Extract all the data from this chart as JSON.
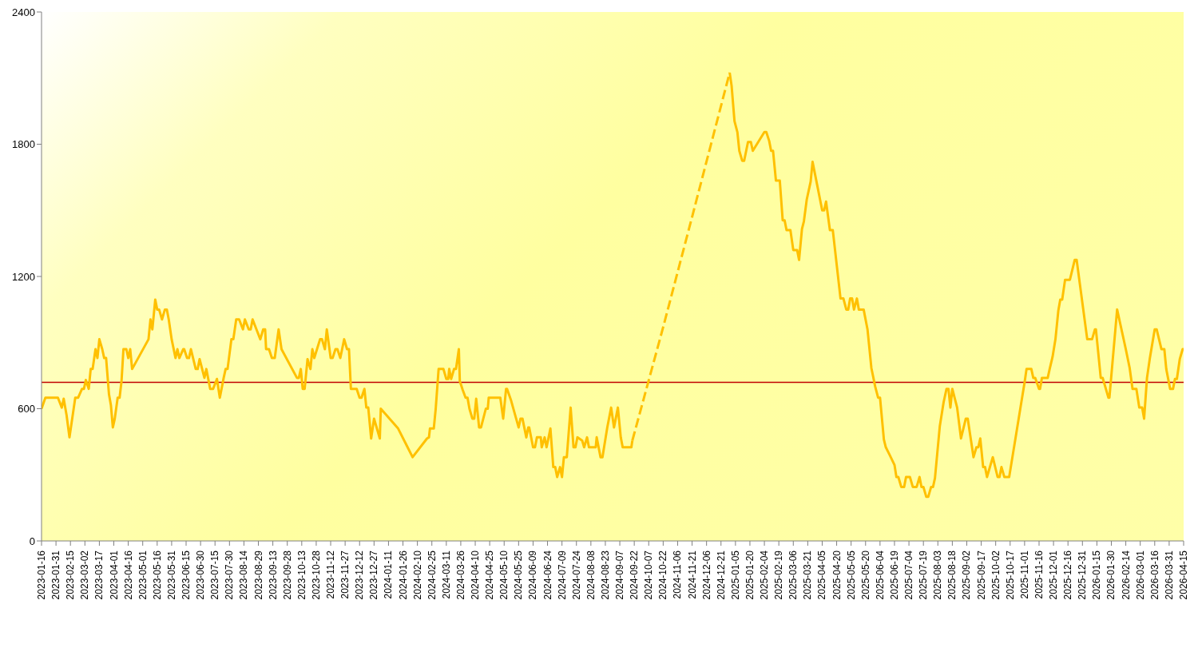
{
  "chart_data": {
    "type": "line",
    "line_style": "solid",
    "marker": "none",
    "xlim": [
      "2023-01-16",
      "2026-04-15"
    ],
    "xticks": [
      "2023-01-16",
      "2023-01-31",
      "2023-02-15",
      "2023-03-02",
      "2023-03-17",
      "2023-04-01",
      "2023-04-16",
      "2023-05-01",
      "2023-05-16",
      "2023-05-31",
      "2023-06-15",
      "2023-06-30",
      "2023-07-15",
      "2023-07-30",
      "2023-08-14",
      "2023-08-29",
      "2023-09-13",
      "2023-09-28",
      "2023-10-13",
      "2023-10-28",
      "2023-11-12",
      "2023-11-27",
      "2023-12-12",
      "2023-12-27",
      "2024-01-11",
      "2024-01-26",
      "2024-02-10",
      "2024-02-25",
      "2024-03-11",
      "2024-03-26",
      "2024-04-10",
      "2024-04-25",
      "2024-05-10",
      "2024-05-25",
      "2024-06-09",
      "2024-06-24",
      "2024-07-09",
      "2024-07-24",
      "2024-08-08",
      "2024-08-23",
      "2024-09-07",
      "2024-09-22",
      "2024-10-07",
      "2024-10-22",
      "2024-11-06",
      "2024-11-21",
      "2024-12-06",
      "2024-12-21",
      "2025-01-05",
      "2025-01-20",
      "2025-02-04",
      "2025-02-19",
      "2025-03-06",
      "2025-03-21",
      "2025-04-05",
      "2025-04-20",
      "2025-05-05",
      "2025-05-20",
      "2025-06-04",
      "2025-06-19",
      "2025-07-04",
      "2025-07-19",
      "2025-08-03",
      "2025-08-18",
      "2025-09-02",
      "2025-09-17",
      "2025-10-02",
      "2025-10-17",
      "2025-11-01",
      "2025-11-16",
      "2025-12-01",
      "2025-12-16",
      "2025-12-31",
      "2026-01-15",
      "2026-01-30",
      "2026-02-14",
      "2026-03-01",
      "2026-03-16",
      "2026-03-31",
      "2026-04-15"
    ],
    "ylim": [
      0,
      2400
    ],
    "yticks": [
      0,
      600,
      1200,
      1800,
      2400
    ],
    "ref_lines": [
      {
        "axis": "y",
        "value": 720,
        "color": "#c00000"
      }
    ],
    "series": [
      {
        "color": "#ffc000",
        "x": [
          "2023-01-16",
          "2023-01-20",
          "2023-02-02",
          "2023-02-06",
          "2023-02-08",
          "2023-02-11",
          "2023-02-14",
          "2023-02-20",
          "2023-02-23",
          "2023-02-27",
          "2023-03-01",
          "2023-03-03",
          "2023-03-06",
          "2023-03-08",
          "2023-03-10",
          "2023-03-13",
          "2023-03-15",
          "2023-03-17",
          "2023-03-20",
          "2023-03-22",
          "2023-03-24",
          "2023-03-27",
          "2023-03-29",
          "2023-03-31",
          "2023-04-02",
          "2023-04-05",
          "2023-04-07",
          "2023-04-09",
          "2023-04-11",
          "2023-04-14",
          "2023-04-16",
          "2023-04-18",
          "2023-04-20",
          "2023-05-07",
          "2023-05-09",
          "2023-05-11",
          "2023-05-14",
          "2023-05-16",
          "2023-05-18",
          "2023-05-21",
          "2023-05-24",
          "2023-05-26",
          "2023-05-28",
          "2023-05-31",
          "2023-06-04",
          "2023-06-06",
          "2023-06-08",
          "2023-06-12",
          "2023-06-13",
          "2023-06-16",
          "2023-06-18",
          "2023-06-20",
          "2023-06-25",
          "2023-06-27",
          "2023-06-29",
          "2023-07-04",
          "2023-07-06",
          "2023-07-10",
          "2023-07-13",
          "2023-07-17",
          "2023-07-20",
          "2023-07-24",
          "2023-07-26",
          "2023-07-28",
          "2023-08-01",
          "2023-08-03",
          "2023-08-06",
          "2023-08-09",
          "2023-08-13",
          "2023-08-15",
          "2023-08-19",
          "2023-08-21",
          "2023-08-23",
          "2023-08-27",
          "2023-08-31",
          "2023-09-03",
          "2023-09-05",
          "2023-09-06",
          "2023-09-09",
          "2023-09-12",
          "2023-09-15",
          "2023-09-19",
          "2023-09-22",
          "2023-10-08",
          "2023-10-10",
          "2023-10-12",
          "2023-10-14",
          "2023-10-16",
          "2023-10-19",
          "2023-10-22",
          "2023-10-24",
          "2023-10-26",
          "2023-11-01",
          "2023-11-03",
          "2023-11-06",
          "2023-11-08",
          "2023-11-12",
          "2023-11-14",
          "2023-11-17",
          "2023-11-19",
          "2023-11-22",
          "2023-11-26",
          "2023-11-29",
          "2023-12-01",
          "2023-12-03",
          "2023-12-09",
          "2023-12-12",
          "2023-12-14",
          "2023-12-17",
          "2023-12-19",
          "2023-12-21",
          "2023-12-24",
          "2023-12-27",
          "2024-01-02",
          "2024-01-03",
          "2024-01-21",
          "2024-02-05",
          "2024-02-20",
          "2024-02-22",
          "2024-02-23",
          "2024-02-27",
          "2024-02-29",
          "2024-03-03",
          "2024-03-08",
          "2024-03-11",
          "2024-03-13",
          "2024-03-14",
          "2024-03-16",
          "2024-03-19",
          "2024-03-21",
          "2024-03-24",
          "2024-03-25",
          "2024-03-28",
          "2024-03-31",
          "2024-04-02",
          "2024-04-04",
          "2024-04-07",
          "2024-04-09",
          "2024-04-11",
          "2024-04-14",
          "2024-04-16",
          "2024-04-21",
          "2024-04-23",
          "2024-04-24",
          "2024-05-06",
          "2024-05-09",
          "2024-05-12",
          "2024-05-13",
          "2024-05-17",
          "2024-05-25",
          "2024-05-27",
          "2024-05-29",
          "2024-06-02",
          "2024-06-04",
          "2024-06-05",
          "2024-06-09",
          "2024-06-11",
          "2024-06-13",
          "2024-06-17",
          "2024-06-18",
          "2024-06-21",
          "2024-06-23",
          "2024-06-27",
          "2024-06-30",
          "2024-07-02",
          "2024-07-04",
          "2024-07-07",
          "2024-07-09",
          "2024-07-11",
          "2024-07-14",
          "2024-07-18",
          "2024-07-21",
          "2024-07-23",
          "2024-07-25",
          "2024-07-30",
          "2024-08-01",
          "2024-08-04",
          "2024-08-06",
          "2024-08-13",
          "2024-08-14",
          "2024-08-18",
          "2024-08-20",
          "2024-08-25",
          "2024-08-29",
          "2024-09-01",
          "2024-09-05",
          "2024-09-08",
          "2024-09-10",
          "2024-09-19",
          "2024-09-20"
        ],
        "values": [
          600,
          650,
          650,
          605,
          645,
          570,
          470,
          650,
          650,
          690,
          690,
          730,
          690,
          780,
          780,
          870,
          830,
          915,
          870,
          830,
          830,
          665,
          615,
          515,
          555,
          650,
          650,
          725,
          870,
          870,
          830,
          870,
          780,
          915,
          1005,
          960,
          1095,
          1050,
          1050,
          1005,
          1050,
          1050,
          1005,
          915,
          830,
          870,
          830,
          870,
          870,
          830,
          830,
          870,
          780,
          780,
          825,
          740,
          780,
          690,
          690,
          735,
          650,
          740,
          780,
          780,
          915,
          915,
          1005,
          1005,
          960,
          1005,
          960,
          960,
          1005,
          960,
          915,
          960,
          960,
          870,
          870,
          830,
          830,
          960,
          870,
          740,
          740,
          780,
          690,
          690,
          825,
          780,
          870,
          830,
          915,
          915,
          870,
          960,
          830,
          830,
          870,
          870,
          830,
          915,
          870,
          870,
          690,
          690,
          650,
          650,
          690,
          605,
          605,
          465,
          555,
          465,
          600,
          510,
          380,
          465,
          470,
          510,
          510,
          600,
          780,
          780,
          735,
          735,
          780,
          735,
          780,
          780,
          870,
          725,
          685,
          650,
          650,
          600,
          555,
          555,
          645,
          515,
          515,
          600,
          600,
          650,
          650,
          555,
          690,
          690,
          640,
          515,
          555,
          555,
          470,
          515,
          515,
          425,
          425,
          470,
          470,
          425,
          470,
          425,
          510,
          335,
          335,
          290,
          335,
          290,
          380,
          380,
          605,
          425,
          425,
          470,
          455,
          425,
          470,
          425,
          425,
          470,
          380,
          380,
          515,
          605,
          515,
          605,
          470,
          425,
          425,
          455
        ]
      },
      {
        "color": "#ffc000",
        "line_style": "dashed",
        "x": [
          "2024-09-20",
          "2024-10-22",
          "2024-11-21",
          "2024-12-30"
        ],
        "values": [
          455,
          970,
          1470,
          2125
        ]
      },
      {
        "color": "#ffc000",
        "x": [
          "2024-12-30",
          "2025-01-01",
          "2025-01-04",
          "2025-01-07",
          "2025-01-09",
          "2025-01-12",
          "2025-01-14",
          "2025-01-18",
          "2025-01-21",
          "2025-01-23",
          "2025-02-04",
          "2025-02-06",
          "2025-02-09",
          "2025-02-11",
          "2025-02-13",
          "2025-02-16",
          "2025-02-20",
          "2025-02-23",
          "2025-02-25",
          "2025-02-27",
          "2025-03-03",
          "2025-03-06",
          "2025-03-10",
          "2025-03-12",
          "2025-03-15",
          "2025-03-17",
          "2025-03-20",
          "2025-03-24",
          "2025-03-26",
          "2025-03-31",
          "2025-04-05",
          "2025-04-07",
          "2025-04-09",
          "2025-04-13",
          "2025-04-16",
          "2025-04-24",
          "2025-04-27",
          "2025-04-30",
          "2025-05-02",
          "2025-05-04",
          "2025-05-06",
          "2025-05-08",
          "2025-05-11",
          "2025-05-13",
          "2025-05-18",
          "2025-05-22",
          "2025-05-26",
          "2025-05-30",
          "2025-06-02",
          "2025-06-04",
          "2025-06-08",
          "2025-06-10",
          "2025-06-14",
          "2025-06-19",
          "2025-06-21",
          "2025-06-23",
          "2025-06-26",
          "2025-06-29",
          "2025-07-01",
          "2025-07-05",
          "2025-07-08",
          "2025-07-12",
          "2025-07-15",
          "2025-07-17",
          "2025-07-19",
          "2025-07-22",
          "2025-07-24",
          "2025-07-27",
          "2025-07-29",
          "2025-07-31",
          "2025-08-05",
          "2025-08-09",
          "2025-08-12",
          "2025-08-14",
          "2025-08-16",
          "2025-08-18",
          "2025-08-23",
          "2025-08-27",
          "2025-09-01",
          "2025-09-03",
          "2025-09-09",
          "2025-09-12",
          "2025-09-14",
          "2025-09-16",
          "2025-09-19",
          "2025-09-21",
          "2025-09-23",
          "2025-09-29",
          "2025-10-04",
          "2025-10-06",
          "2025-10-08",
          "2025-10-11",
          "2025-10-16",
          "2025-11-01",
          "2025-11-03",
          "2025-11-08",
          "2025-11-10",
          "2025-11-12",
          "2025-11-16",
          "2025-11-17",
          "2025-11-19",
          "2025-11-25",
          "2025-11-27",
          "2025-11-30",
          "2025-12-03",
          "2025-12-06",
          "2025-12-08",
          "2025-12-10",
          "2025-12-13",
          "2025-12-18",
          "2025-12-23",
          "2025-12-25",
          "2026-01-05",
          "2026-01-10",
          "2026-01-13",
          "2026-01-14",
          "2026-01-19",
          "2026-01-21",
          "2026-01-27",
          "2026-01-28",
          "2026-02-05",
          "2026-02-14",
          "2026-02-18",
          "2026-02-21",
          "2026-02-25",
          "2026-02-28",
          "2026-03-03",
          "2026-03-05",
          "2026-03-08",
          "2026-03-11",
          "2026-03-16",
          "2026-03-18",
          "2026-03-23",
          "2026-03-26",
          "2026-03-28",
          "2026-04-01",
          "2026-04-04",
          "2026-04-06",
          "2026-04-08",
          "2026-04-11",
          "2026-04-14",
          "2026-04-15"
        ],
        "values": [
          2125,
          2065,
          1905,
          1855,
          1770,
          1725,
          1725,
          1810,
          1810,
          1770,
          1855,
          1855,
          1815,
          1770,
          1770,
          1635,
          1635,
          1455,
          1455,
          1410,
          1410,
          1320,
          1320,
          1275,
          1415,
          1450,
          1550,
          1630,
          1720,
          1610,
          1500,
          1500,
          1540,
          1410,
          1410,
          1100,
          1100,
          1050,
          1050,
          1100,
          1100,
          1050,
          1100,
          1050,
          1050,
          960,
          785,
          700,
          650,
          650,
          460,
          425,
          390,
          345,
          290,
          290,
          245,
          245,
          290,
          290,
          245,
          245,
          290,
          245,
          245,
          200,
          200,
          245,
          245,
          285,
          520,
          630,
          690,
          690,
          605,
          690,
          605,
          465,
          555,
          555,
          380,
          425,
          425,
          465,
          335,
          335,
          290,
          380,
          290,
          290,
          335,
          290,
          290,
          720,
          780,
          780,
          740,
          740,
          690,
          690,
          740,
          740,
          780,
          835,
          915,
          1045,
          1095,
          1095,
          1185,
          1185,
          1275,
          1275,
          915,
          915,
          960,
          960,
          740,
          740,
          650,
          650,
          1050,
          870,
          785,
          690,
          690,
          605,
          605,
          555,
          740,
          830,
          960,
          960,
          870,
          870,
          780,
          690,
          690,
          735,
          735,
          825,
          870,
          870
        ]
      }
    ]
  }
}
